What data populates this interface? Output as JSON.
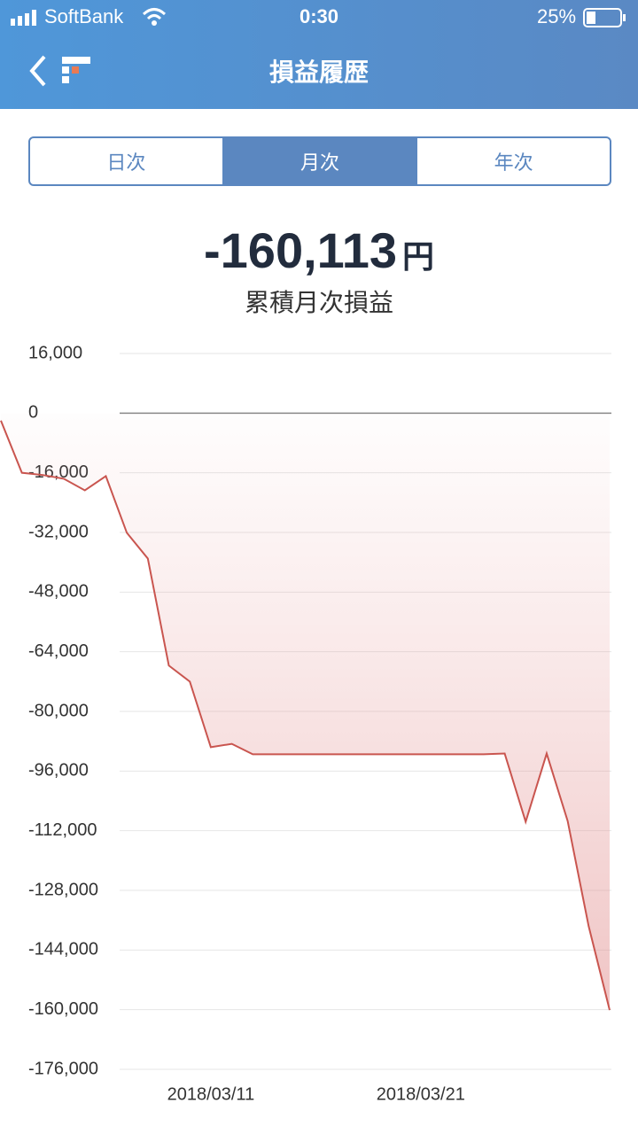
{
  "status_bar": {
    "carrier": "SoftBank",
    "time": "0:30",
    "battery": "25%"
  },
  "header": {
    "title": "損益履歴"
  },
  "tabs": {
    "items": [
      "日次",
      "月次",
      "年次"
    ],
    "selected": 1
  },
  "summary": {
    "value": "-160,113",
    "unit": "円",
    "label": "累積月次損益"
  },
  "chart_data": {
    "type": "line",
    "color": "#c9554f",
    "x": [
      "2018/03/01",
      "2018/03/02",
      "2018/03/03",
      "2018/03/04",
      "2018/03/05",
      "2018/03/06",
      "2018/03/07",
      "2018/03/08",
      "2018/03/09",
      "2018/03/10",
      "2018/03/11",
      "2018/03/12",
      "2018/03/13",
      "2018/03/14",
      "2018/03/15",
      "2018/03/16",
      "2018/03/17",
      "2018/03/18",
      "2018/03/19",
      "2018/03/20",
      "2018/03/21",
      "2018/03/22",
      "2018/03/23",
      "2018/03/24",
      "2018/03/25",
      "2018/03/26",
      "2018/03/27",
      "2018/03/28",
      "2018/03/29",
      "2018/03/30"
    ],
    "values": [
      -2000,
      -16000,
      -16600,
      -17600,
      -20700,
      -16900,
      -32100,
      -39000,
      -67700,
      -72000,
      -89600,
      -88700,
      -91500,
      -91500,
      -91500,
      -91500,
      -91500,
      -91500,
      -91500,
      -91500,
      -91500,
      -91500,
      -91500,
      -91500,
      -91300,
      -109600,
      -91300,
      -109400,
      -137600,
      -160113
    ],
    "xlim": [
      "2018/03/01",
      "2018/03/30"
    ],
    "xticks": [
      "2018/03/11",
      "2018/03/21"
    ],
    "ylim": [
      -176000,
      16000
    ],
    "yticks": [
      {
        "value": 16000,
        "label": "16,000"
      },
      0,
      {
        "value": -16000,
        "label": "-16,000"
      },
      {
        "value": -32000,
        "label": "-32,000"
      },
      {
        "value": -48000,
        "label": "-48,000"
      },
      {
        "value": -64000,
        "label": "-64,000"
      },
      {
        "value": -80000,
        "label": "-80,000"
      },
      {
        "value": -96000,
        "label": "-96,000"
      },
      {
        "value": -112000,
        "label": "-112,000"
      },
      {
        "value": -128000,
        "label": "-128,000"
      },
      {
        "value": -144000,
        "label": "-144,000"
      },
      {
        "value": -160000,
        "label": "-160,000"
      },
      {
        "value": -176000,
        "label": "-176,000"
      }
    ],
    "grid": true
  }
}
